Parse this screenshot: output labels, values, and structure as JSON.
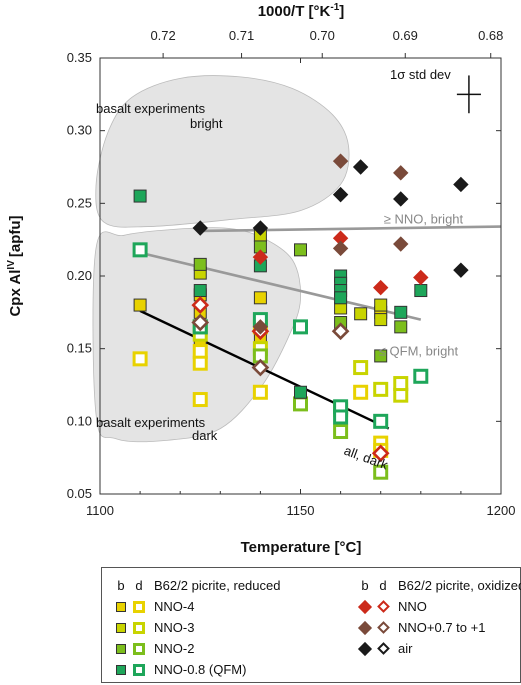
{
  "chart_data": {
    "type": "scatter",
    "xlabel": "Temperature [°C]",
    "ylabel_main": "Cpx Al",
    "ylabel_sup": "IV",
    "ylabel_unit": "[apfu]",
    "top_xlabel_main": "1000/T [°K",
    "top_xlabel_sup": "-1",
    "top_xlabel_end": "]",
    "xlim": [
      1100,
      1200
    ],
    "ylim": [
      0.05,
      0.35
    ],
    "x_ticks": [
      1100,
      1150,
      1200
    ],
    "x_tick_labels": [
      "1100",
      "1150",
      "1200"
    ],
    "y_ticks": [
      0.05,
      0.1,
      0.15,
      0.2,
      0.25,
      0.3,
      0.35
    ],
    "y_tick_labels": [
      "0.05",
      "0.10",
      "0.15",
      "0.20",
      "0.25",
      "0.30",
      "0.35"
    ],
    "top_ticks": [
      0.72,
      0.71,
      0.7,
      0.69,
      0.68
    ],
    "top_tick_labels": [
      "0.72",
      "0.71",
      "0.70",
      "0.69",
      "0.68"
    ],
    "error_bar": {
      "label": "1σ std dev",
      "x": 1192,
      "y": 0.325,
      "dx": 3,
      "dy": 0.013
    },
    "series": [
      {
        "name": "NNO-4",
        "group": "reduced",
        "marker": "square",
        "color": "#e8d200",
        "bright": [
          [
            1110,
            0.18
          ],
          [
            1125,
            0.175
          ],
          [
            1125,
            0.187
          ],
          [
            1125,
            0.162
          ],
          [
            1125,
            0.155
          ],
          [
            1140,
            0.185
          ],
          [
            1140,
            0.158
          ],
          [
            1170,
            0.175
          ]
        ],
        "dark": [
          [
            1110,
            0.143
          ],
          [
            1125,
            0.148
          ],
          [
            1125,
            0.14
          ],
          [
            1125,
            0.115
          ],
          [
            1140,
            0.12
          ],
          [
            1140,
            0.165
          ],
          [
            1160,
            0.108
          ],
          [
            1165,
            0.12
          ],
          [
            1170,
            0.085
          ],
          [
            1170,
            0.08
          ]
        ]
      },
      {
        "name": "NNO-3",
        "group": "reduced",
        "marker": "square",
        "color": "#c8d400",
        "bright": [
          [
            1125,
            0.202
          ],
          [
            1140,
            0.228
          ],
          [
            1165,
            0.174
          ],
          [
            1170,
            0.17
          ],
          [
            1170,
            0.18
          ],
          [
            1160,
            0.178
          ]
        ],
        "dark": [
          [
            1125,
            0.16
          ],
          [
            1140,
            0.15
          ],
          [
            1165,
            0.137
          ],
          [
            1170,
            0.122
          ],
          [
            1175,
            0.118
          ],
          [
            1175,
            0.126
          ]
        ]
      },
      {
        "name": "NNO-2",
        "group": "reduced",
        "marker": "square",
        "color": "#7cbe1c",
        "bright": [
          [
            1125,
            0.208
          ],
          [
            1140,
            0.22
          ],
          [
            1150,
            0.218
          ],
          [
            1160,
            0.168
          ],
          [
            1170,
            0.145
          ],
          [
            1175,
            0.165
          ]
        ],
        "dark": [
          [
            1150,
            0.112
          ],
          [
            1160,
            0.093
          ],
          [
            1170,
            0.065
          ],
          [
            1140,
            0.145
          ],
          [
            1125,
            0.165
          ]
        ]
      },
      {
        "name": "NNO-0.8 (QFM)",
        "group": "reduced",
        "marker": "square",
        "color": "#1ea65a",
        "bright": [
          [
            1110,
            0.255
          ],
          [
            1125,
            0.19
          ],
          [
            1140,
            0.207
          ],
          [
            1150,
            0.12
          ],
          [
            1160,
            0.2
          ],
          [
            1160,
            0.195
          ],
          [
            1160,
            0.19
          ],
          [
            1160,
            0.185
          ],
          [
            1175,
            0.175
          ],
          [
            1180,
            0.19
          ]
        ],
        "dark": [
          [
            1110,
            0.218
          ],
          [
            1125,
            0.165
          ],
          [
            1140,
            0.17
          ],
          [
            1150,
            0.165
          ],
          [
            1160,
            0.11
          ],
          [
            1160,
            0.103
          ],
          [
            1170,
            0.1
          ],
          [
            1180,
            0.131
          ]
        ]
      },
      {
        "name": "NNO",
        "group": "oxidized",
        "marker": "diamond",
        "color": "#cc2a1a",
        "bright": [
          [
            1140,
            0.213
          ],
          [
            1160,
            0.226
          ],
          [
            1170,
            0.192
          ],
          [
            1180,
            0.199
          ]
        ],
        "dark": [
          [
            1125,
            0.18
          ],
          [
            1140,
            0.162
          ],
          [
            1170,
            0.078
          ]
        ]
      },
      {
        "name": "NNO+0.7 to +1",
        "group": "oxidized",
        "marker": "diamond",
        "color": "#7a4a3a",
        "bright": [
          [
            1160,
            0.279
          ],
          [
            1160,
            0.219
          ],
          [
            1175,
            0.271
          ],
          [
            1175,
            0.222
          ],
          [
            1140,
            0.165
          ]
        ],
        "dark": [
          [
            1125,
            0.168
          ],
          [
            1140,
            0.137
          ],
          [
            1160,
            0.162
          ]
        ]
      },
      {
        "name": "air",
        "group": "oxidized",
        "marker": "diamond",
        "color": "#1a1a1a",
        "bright": [
          [
            1125,
            0.233
          ],
          [
            1140,
            0.233
          ],
          [
            1160,
            0.256
          ],
          [
            1165,
            0.275
          ],
          [
            1175,
            0.253
          ],
          [
            1190,
            0.263
          ],
          [
            1190,
            0.204
          ]
        ],
        "dark": []
      }
    ],
    "fit_lines": [
      {
        "label": "≥ NNO, bright",
        "color": "#999999",
        "x": [
          1125,
          1200
        ],
        "y": [
          0.231,
          0.234
        ],
        "label_x": 1177,
        "label_y": 0.239
      },
      {
        "label": "≤ QFM, bright",
        "color": "#999999",
        "x": [
          1110,
          1180
        ],
        "y": [
          0.216,
          0.17
        ],
        "label_x": 1177,
        "label_y": 0.148
      },
      {
        "label": "all, dark",
        "color": "#000000",
        "x": [
          1110,
          1172
        ],
        "y": [
          0.176,
          0.095
        ],
        "label_x": 1168,
        "label_y": 0.073
      }
    ],
    "fields": [
      {
        "label_line1": "basalt experiments",
        "label_line2": "bright",
        "color": "#e4e4e4",
        "outline": [
          [
            1102,
            0.299
          ],
          [
            1108,
            0.323
          ],
          [
            1120,
            0.336
          ],
          [
            1135,
            0.337
          ],
          [
            1148,
            0.329
          ],
          [
            1158,
            0.311
          ],
          [
            1162,
            0.289
          ],
          [
            1160,
            0.263
          ],
          [
            1150,
            0.245
          ],
          [
            1133,
            0.239
          ],
          [
            1112,
            0.234
          ],
          [
            1101,
            0.237
          ],
          [
            1099,
            0.262
          ]
        ]
      },
      {
        "label_line1": "basalt experiments",
        "label_line2": "dark",
        "color": "#e4e4e4",
        "outline": [
          [
            1099,
            0.219
          ],
          [
            1106,
            0.228
          ],
          [
            1118,
            0.232
          ],
          [
            1131,
            0.233
          ],
          [
            1140,
            0.227
          ],
          [
            1148,
            0.211
          ],
          [
            1150,
            0.184
          ],
          [
            1147,
            0.158
          ],
          [
            1140,
            0.123
          ],
          [
            1130,
            0.095
          ],
          [
            1117,
            0.087
          ],
          [
            1104,
            0.088
          ],
          [
            1099,
            0.105
          ]
        ]
      }
    ]
  },
  "legend": {
    "b_label": "b",
    "d_label": "d",
    "reduced_title": "B62/2 picrite, reduced",
    "oxidized_title": "B62/2 picrite, oxidized",
    "reduced_items": [
      {
        "label": "NNO-4",
        "color": "#e8d200"
      },
      {
        "label": "NNO-3",
        "color": "#c8d400"
      },
      {
        "label": "NNO-2",
        "color": "#7cbe1c"
      },
      {
        "label": "NNO-0.8 (QFM)",
        "color": "#1ea65a"
      }
    ],
    "oxidized_items": [
      {
        "label": "NNO",
        "color": "#cc2a1a"
      },
      {
        "label": "NNO+0.7 to +1",
        "color": "#7a4a3a"
      },
      {
        "label": "air",
        "color": "#1a1a1a"
      }
    ]
  }
}
